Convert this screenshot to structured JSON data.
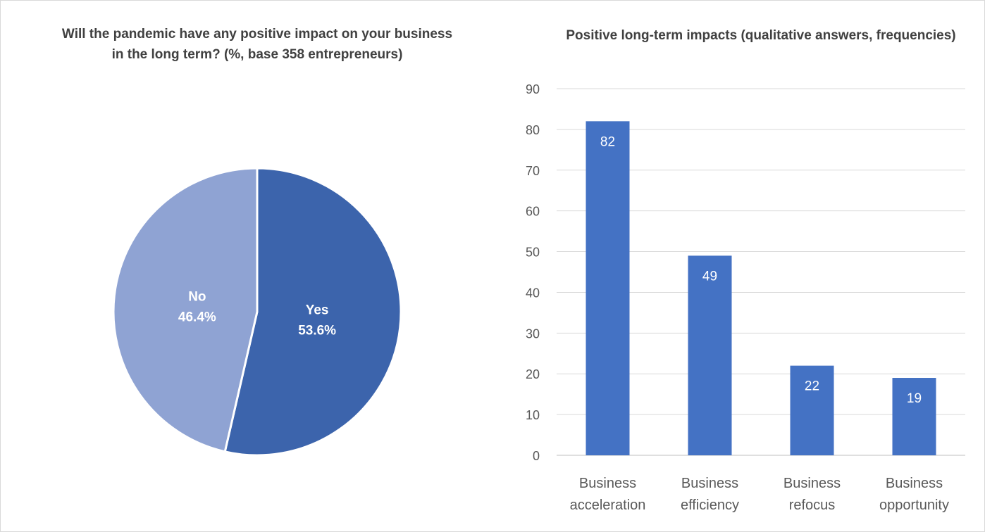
{
  "chart_data": [
    {
      "type": "pie",
      "title": "Will the pandemic have any positive impact on your business in the long term? (%, base 358 entrepreneurs)",
      "slices": [
        {
          "label": "Yes",
          "value": 53.6,
          "display": "53.6%",
          "color": "#3c64ac"
        },
        {
          "label": "No",
          "value": 46.4,
          "display": "46.4%",
          "color": "#8fa3d3"
        }
      ]
    },
    {
      "type": "bar",
      "title": "Positive long-term impacts (qualitative answers, frequencies)",
      "categories": [
        [
          "Business",
          "acceleration"
        ],
        [
          "Business",
          "efficiency"
        ],
        [
          "Business",
          "refocus"
        ],
        [
          "Business",
          "opportunity"
        ]
      ],
      "values": [
        82,
        49,
        22,
        19
      ],
      "ylim": [
        0,
        90
      ],
      "yticks": [
        0,
        10,
        20,
        30,
        40,
        50,
        60,
        70,
        80,
        90
      ],
      "color": "#4472c4",
      "grid": true,
      "xlabel": "",
      "ylabel": ""
    }
  ]
}
